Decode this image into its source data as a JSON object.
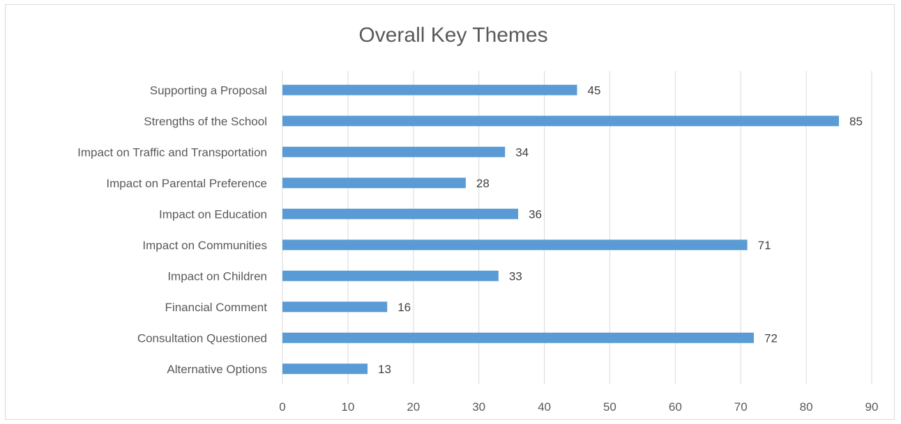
{
  "chart_data": {
    "type": "bar",
    "orientation": "horizontal",
    "title": "Overall Key Themes",
    "categories": [
      "Supporting a Proposal",
      "Strengths of the School",
      "Impact on Traffic and Transportation",
      "Impact on Parental Preference",
      "Impact on Education",
      "Impact on Communities",
      "Impact on Children",
      "Financial Comment",
      "Consultation Questioned",
      "Alternative Options"
    ],
    "values": [
      45,
      85,
      34,
      28,
      36,
      71,
      33,
      16,
      72,
      13
    ],
    "xlim": [
      0,
      90
    ],
    "xticks": [
      0,
      10,
      20,
      30,
      40,
      50,
      60,
      70,
      80,
      90
    ],
    "xlabel": "",
    "ylabel": "",
    "grid": "vertical",
    "legend": "none",
    "data_labels": true,
    "bar_color": "#5b9bd5",
    "grid_color": "#d9d9d9",
    "text_color": "#595959"
  }
}
